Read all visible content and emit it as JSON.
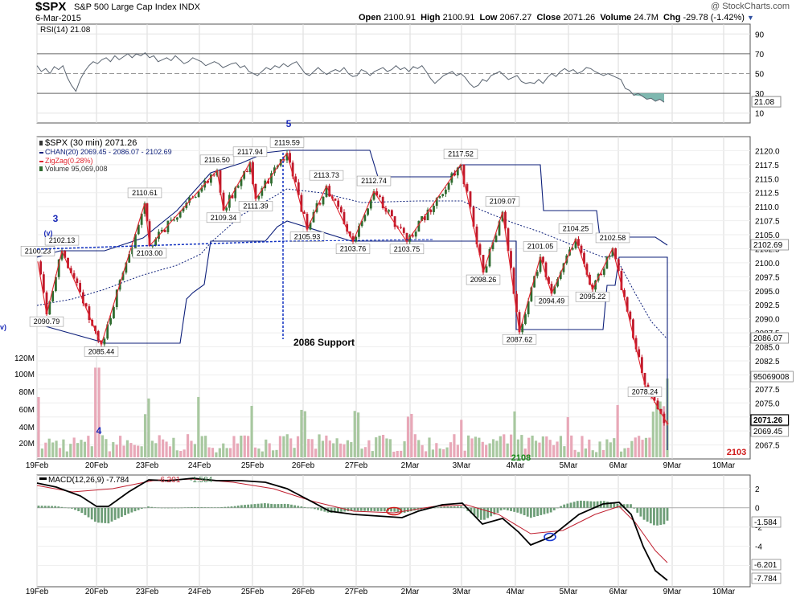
{
  "header": {
    "symbol": "$SPX",
    "name": "S&P 500 Large Cap Index",
    "exchange": "INDX",
    "date": "6-Mar-2015",
    "copyright": "@ StockCharts.com",
    "open_label": "Open",
    "open": "2100.91",
    "high_label": "High",
    "high": "2100.91",
    "low_label": "Low",
    "low": "2067.27",
    "close_label": "Close",
    "close": "2071.26",
    "volume_label": "Volume",
    "volume": "24.7M",
    "chg_label": "Chg",
    "chg": "-29.78 (-1.42%)"
  },
  "colors": {
    "up": "#2f6b2f",
    "down": "#c0182a",
    "zigzag": "#e0242e",
    "channel": "#0d1f7a",
    "vol_up": "#a8c8a0",
    "vol_down": "#e8a8b8",
    "annotation": "#1030c0",
    "rsi_fill": "#7fb8b0",
    "macd_hist": "#6e9e78",
    "signal": "#c02030"
  },
  "chart_data": [
    {
      "type": "line",
      "panel": "rsi",
      "legend": "RSI(14) 21.08",
      "ylim": [
        0,
        100
      ],
      "y_ticks": [
        10,
        30,
        50,
        70,
        90
      ],
      "last_value_label": "21.08",
      "values": [
        58,
        52,
        55,
        50,
        57,
        54,
        58,
        46,
        38,
        32,
        44,
        52,
        58,
        62,
        60,
        64,
        66,
        62,
        68,
        64,
        67,
        70,
        66,
        70,
        68,
        71,
        66,
        68,
        62,
        64,
        66,
        63,
        68,
        64,
        60,
        62,
        66,
        64,
        62,
        58,
        60,
        62,
        60,
        56,
        58,
        60,
        61,
        56,
        58,
        52,
        50,
        48,
        52,
        56,
        54,
        58,
        56,
        60,
        57,
        60,
        62,
        56,
        50,
        48,
        52,
        56,
        52,
        49,
        52,
        54,
        52,
        56,
        50,
        47,
        48,
        54,
        52,
        48,
        52,
        54,
        56,
        52,
        54,
        58,
        54,
        56,
        52,
        57,
        55,
        58,
        52,
        45,
        40,
        44,
        48,
        50,
        52,
        48,
        50,
        46,
        40,
        36,
        38,
        44,
        42,
        48,
        50,
        52,
        48,
        44,
        46,
        48,
        42,
        40,
        41,
        40,
        44,
        40,
        46,
        50,
        47,
        52,
        55,
        52,
        54,
        50,
        52,
        56,
        55,
        52,
        50,
        48,
        50,
        48,
        46,
        44,
        35,
        33,
        28,
        30,
        27,
        24,
        25,
        22,
        24,
        21
      ]
    },
    {
      "type": "line",
      "panel": "price",
      "legend": [
        "$SPX (30 min) 2071.26",
        "CHAN(20) 2069.45 - 2086.07 - 2102.69",
        "ZigZag(0.28%)",
        "Volume 95,069,008"
      ],
      "x_labels": [
        "19Feb",
        "20Feb",
        "23Feb",
        "24Feb",
        "25Feb",
        "26Feb",
        "27Feb",
        "2Mar",
        "3Mar",
        "4Mar",
        "5Mar",
        "6Mar",
        "9Mar",
        "10Mar"
      ],
      "ylim": [
        2065,
        2122.5
      ],
      "y_ticks": [
        "2067.5",
        "2070.0",
        "2072.5",
        "2075.0",
        "2077.5",
        "2080.0",
        "2082.5",
        "2085.0",
        "2087.5",
        "2090.0",
        "2092.5",
        "2095.0",
        "2097.5",
        "2100.0",
        "2102.5",
        "2105.0",
        "2107.5",
        "2110.0",
        "2112.5",
        "2115.0",
        "2117.5",
        "2120.0"
      ],
      "price_tags": [
        "2102.69",
        "2086.07",
        "2069.45",
        "2071.26",
        "95069008"
      ],
      "zigzag_points": [
        {
          "label": "2100.23",
          "value": 2100.23
        },
        {
          "label": "2090.79",
          "value": 2090.79
        },
        {
          "label": "2102.13",
          "value": 2102.13
        },
        {
          "label": "2085.44",
          "value": 2085.44
        },
        {
          "label": "2110.61",
          "value": 2110.61
        },
        {
          "label": "2103.00",
          "value": 2103.0
        },
        {
          "label": "2116.50",
          "value": 2116.5
        },
        {
          "label": "2109.34",
          "value": 2109.34
        },
        {
          "label": "2117.94",
          "value": 2117.94
        },
        {
          "label": "2111.39",
          "value": 2111.39
        },
        {
          "label": "2119.59",
          "value": 2119.59
        },
        {
          "label": "2105.93",
          "value": 2105.93
        },
        {
          "label": "2113.73",
          "value": 2113.73
        },
        {
          "label": "2103.76",
          "value": 2103.76
        },
        {
          "label": "2112.74",
          "value": 2112.74
        },
        {
          "label": "2103.75",
          "value": 2103.75
        },
        {
          "label": "2117.52",
          "value": 2117.52
        },
        {
          "label": "2098.26",
          "value": 2098.26
        },
        {
          "label": "2109.07",
          "value": 2109.07
        },
        {
          "label": "2087.62",
          "value": 2087.62
        },
        {
          "label": "2101.05",
          "value": 2101.05
        },
        {
          "label": "2094.49",
          "value": 2094.49
        },
        {
          "label": "2104.25",
          "value": 2104.25
        },
        {
          "label": "2095.22",
          "value": 2095.22
        },
        {
          "label": "2102.58",
          "value": 2102.58
        },
        {
          "label": "2078.24",
          "value": 2078.24
        },
        {
          "label": "2071.26",
          "value": 2071.26
        }
      ],
      "annotations": [
        {
          "text": "3"
        },
        {
          "text": "(v)"
        },
        {
          "text": "5"
        },
        {
          "text": "4"
        },
        {
          "text": "2086 Support"
        },
        {
          "text": "2108"
        },
        {
          "text": "2103"
        },
        {
          "text": "v)"
        }
      ]
    },
    {
      "type": "bar",
      "panel": "volume",
      "y_ticks": [
        "20M",
        "40M",
        "60M",
        "80M",
        "100M",
        "120M"
      ],
      "ylim": [
        0,
        130
      ]
    },
    {
      "type": "line",
      "panel": "macd",
      "legend": [
        "MACD(12,26,9) -7.784",
        "-6.201",
        "-1.584"
      ],
      "ylim": [
        -8.2,
        3.4
      ],
      "y_ticks": [
        -6,
        -4,
        -2,
        0,
        2
      ],
      "value_tags": [
        "-1.584",
        "-6.201",
        "-7.784"
      ]
    }
  ]
}
